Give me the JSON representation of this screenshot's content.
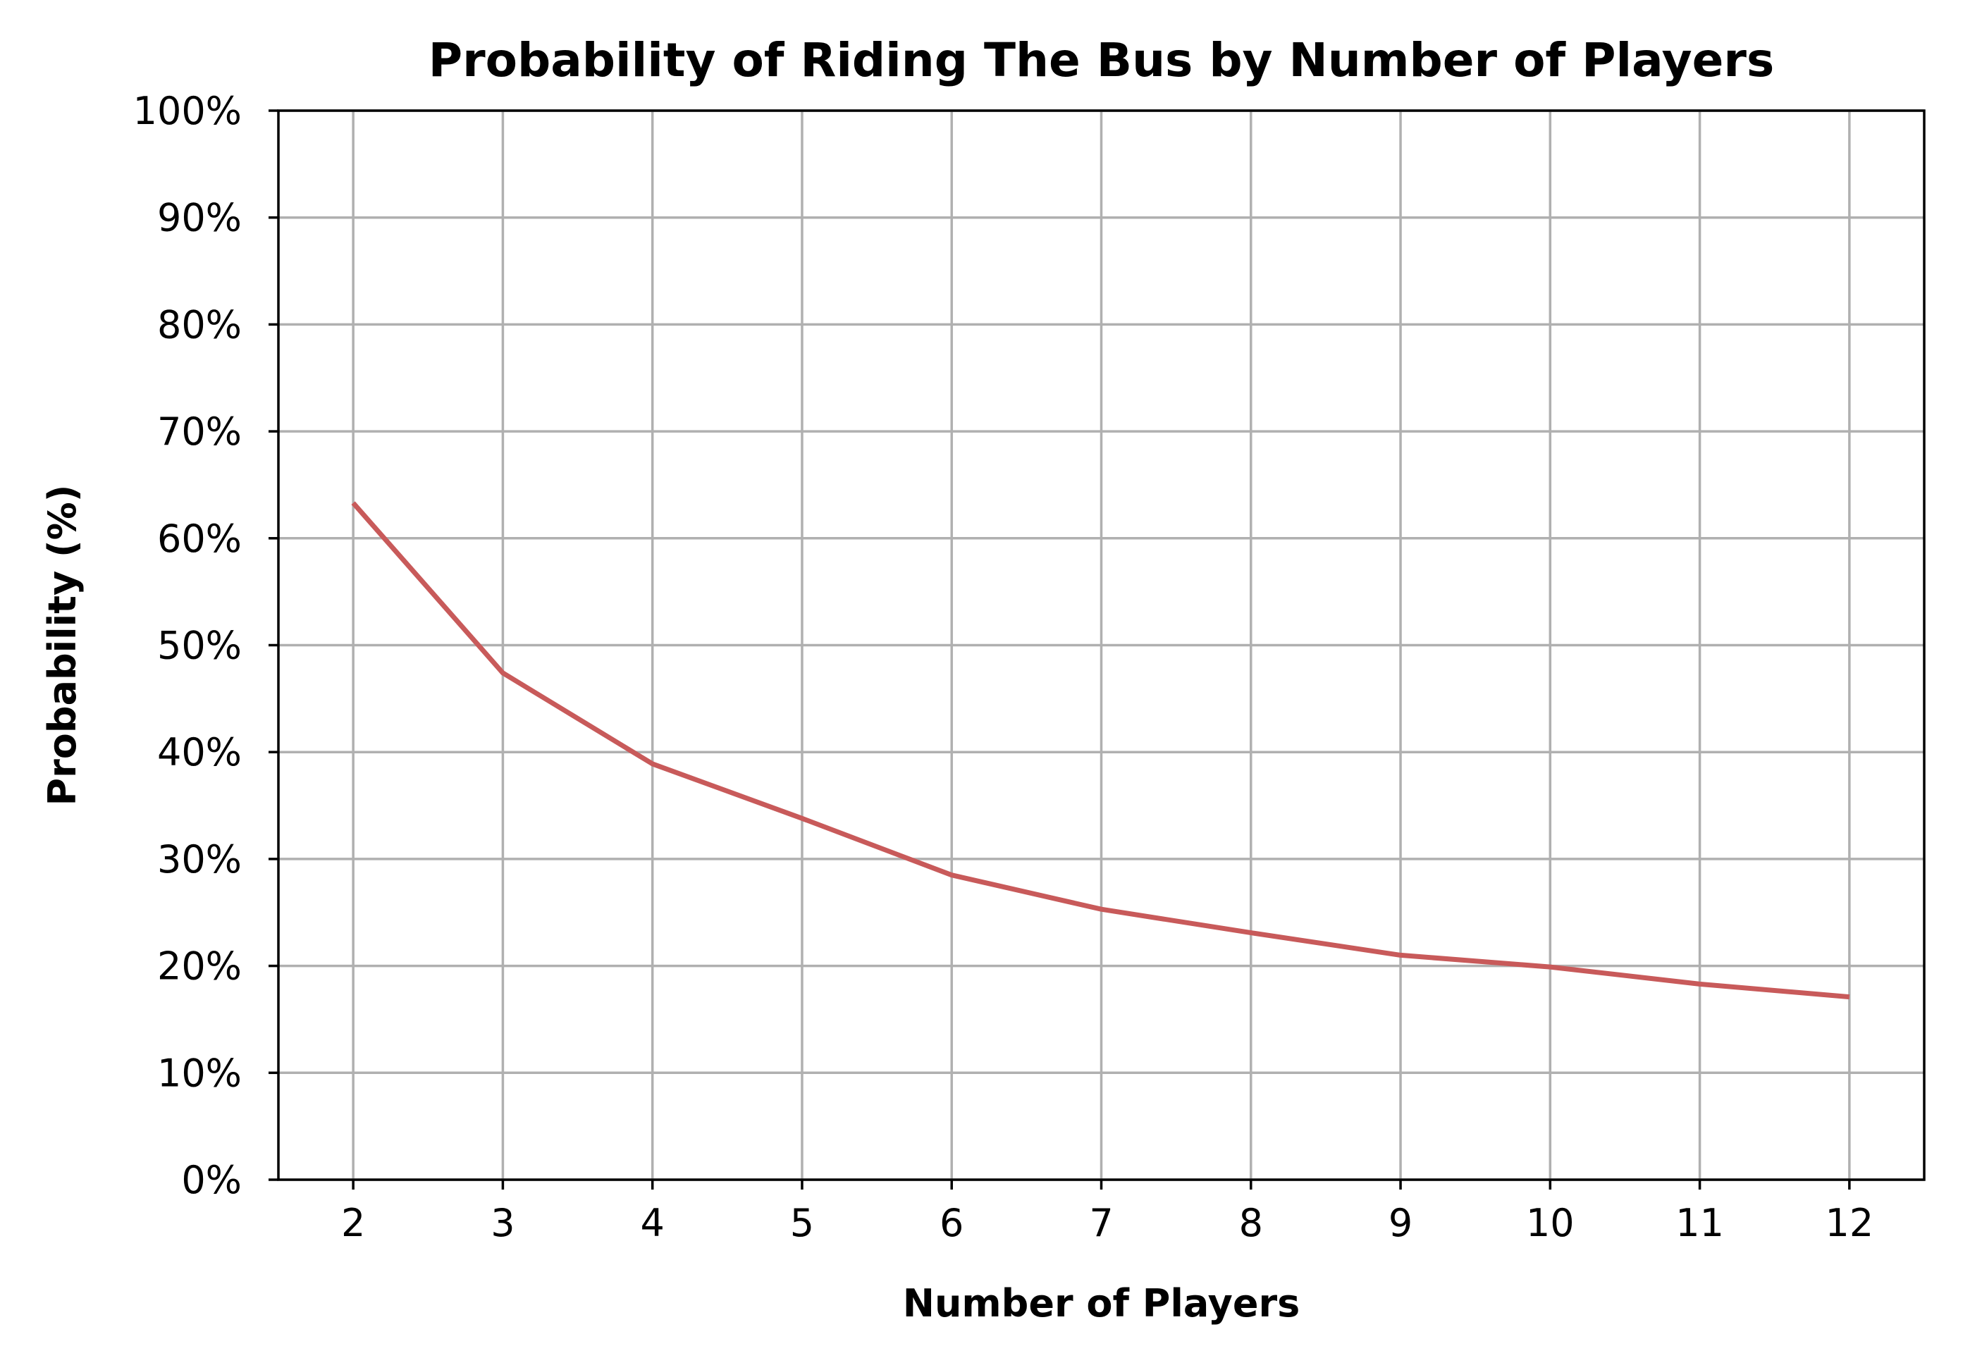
{
  "chart_data": {
    "type": "line",
    "title": "Probability of Riding The Bus by Number of Players",
    "xlabel": "Number of Players",
    "ylabel": "Probability (%)",
    "x": [
      2,
      3,
      4,
      5,
      6,
      7,
      8,
      9,
      10,
      11,
      12
    ],
    "series": [
      {
        "values": [
          63.3,
          47.4,
          38.9,
          33.8,
          28.5,
          25.3,
          23.1,
          21.0,
          19.9,
          18.3,
          17.1
        ],
        "color": "#c85a5a"
      }
    ],
    "xlim": [
      1.5,
      12.5
    ],
    "ylim": [
      0,
      100
    ],
    "x_ticks": [
      "2",
      "3",
      "4",
      "5",
      "6",
      "7",
      "8",
      "9",
      "10",
      "11",
      "12"
    ],
    "y_ticks": [
      "0%",
      "10%",
      "20%",
      "30%",
      "40%",
      "50%",
      "60%",
      "70%",
      "80%",
      "90%",
      "100%"
    ],
    "y_tick_values": [
      0,
      10,
      20,
      30,
      40,
      50,
      60,
      70,
      80,
      90,
      100
    ],
    "grid": true,
    "legend": "none"
  }
}
